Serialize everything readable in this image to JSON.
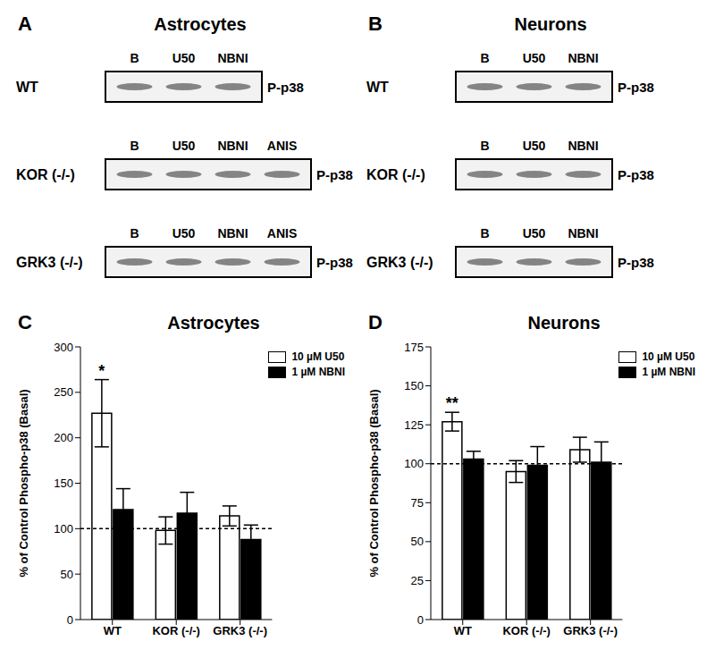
{
  "blots": [
    {
      "panel": "A",
      "title": "Astrocytes",
      "rows": [
        {
          "label": "WT",
          "lanes": [
            "B",
            "U50",
            "NBNI"
          ],
          "band": "P-p38"
        },
        {
          "label": "KOR (-/-)",
          "lanes": [
            "B",
            "U50",
            "NBNI",
            "ANIS"
          ],
          "band": "P-p38"
        },
        {
          "label": "GRK3 (-/-)",
          "lanes": [
            "B",
            "U50",
            "NBNI",
            "ANIS"
          ],
          "band": "P-p38"
        }
      ]
    },
    {
      "panel": "B",
      "title": "Neurons",
      "rows": [
        {
          "label": "WT",
          "lanes": [
            "B",
            "U50",
            "NBNI"
          ],
          "band": "P-p38"
        },
        {
          "label": "KOR (-/-)",
          "lanes": [
            "B",
            "U50",
            "NBNI"
          ],
          "band": "P-p38"
        },
        {
          "label": "GRK3 (-/-)",
          "lanes": [
            "B",
            "U50",
            "NBNI"
          ],
          "band": "P-p38"
        }
      ]
    }
  ],
  "chart_data": [
    {
      "panel": "C",
      "type": "bar",
      "title": "Astrocytes",
      "ylabel": "% of Control Phospho-p38 (Basal)",
      "categories": [
        "WT",
        "KOR (-/-)",
        "GRK3 (-/-)"
      ],
      "series": [
        {
          "name": "10 µM U50",
          "color": "#ffffff",
          "values": [
            227,
            98,
            114
          ],
          "errors": [
            37,
            15,
            11
          ]
        },
        {
          "name": "1 µM NBNI",
          "color": "#000000",
          "values": [
            121,
            117,
            88
          ],
          "errors": [
            23,
            23,
            16
          ]
        }
      ],
      "ylim": [
        0,
        300
      ],
      "yticks": [
        0,
        50,
        100,
        150,
        200,
        250,
        300
      ],
      "baseline": 100,
      "annotations": [
        {
          "category": "WT",
          "series": "10 µM U50",
          "text": "*"
        }
      ],
      "legend": "upper right"
    },
    {
      "panel": "D",
      "type": "bar",
      "title": "Neurons",
      "ylabel": "% of Control Phospho-p38 (Basal)",
      "categories": [
        "WT",
        "KOR (-/-)",
        "GRK3 (-/-)"
      ],
      "series": [
        {
          "name": "10 µM U50",
          "color": "#ffffff",
          "values": [
            127,
            95,
            109
          ],
          "errors": [
            6,
            7,
            8
          ]
        },
        {
          "name": "1 µM NBNI",
          "color": "#000000",
          "values": [
            103,
            99,
            101
          ],
          "errors": [
            5,
            12,
            13
          ]
        }
      ],
      "ylim": [
        0,
        175
      ],
      "yticks": [
        0,
        25,
        50,
        75,
        100,
        125,
        150,
        175
      ],
      "baseline": 100,
      "annotations": [
        {
          "category": "WT",
          "series": "10 µM U50",
          "text": "**"
        }
      ],
      "legend": "upper right"
    }
  ]
}
